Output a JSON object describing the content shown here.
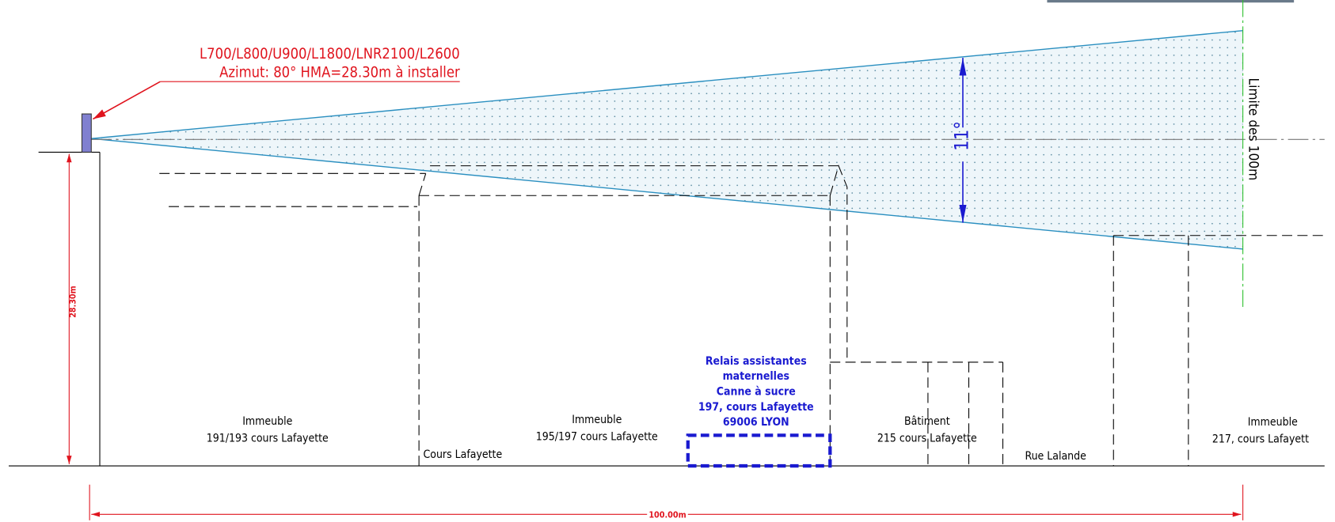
{
  "antenna": {
    "label_lines": [
      "L700/L800/U900/L1800/LNR2100/L2600",
      "Azimut: 80° HMA=28.30m à installer"
    ]
  },
  "angle": "11°",
  "limit": "Limite des 100m",
  "height": "28.30m",
  "distance": "100.00m",
  "buildings": [
    {
      "name": "Immeuble",
      "address": "191/193 cours Lafayette"
    },
    {
      "name": "Immeuble",
      "address": "195/197 cours Lafayette"
    },
    {
      "name": "Bâtiment",
      "address": "215 cours Lafayette"
    },
    {
      "name": "Immeuble",
      "address": "217, cours Lafayett"
    }
  ],
  "streets": [
    "Cours Lafayette",
    "Rue Lalande"
  ],
  "sensitive_site": {
    "lines": [
      "Relais assistantes",
      "maternelles",
      "Canne à sucre",
      "197, cours Lafayette",
      "69006 LYON"
    ]
  }
}
